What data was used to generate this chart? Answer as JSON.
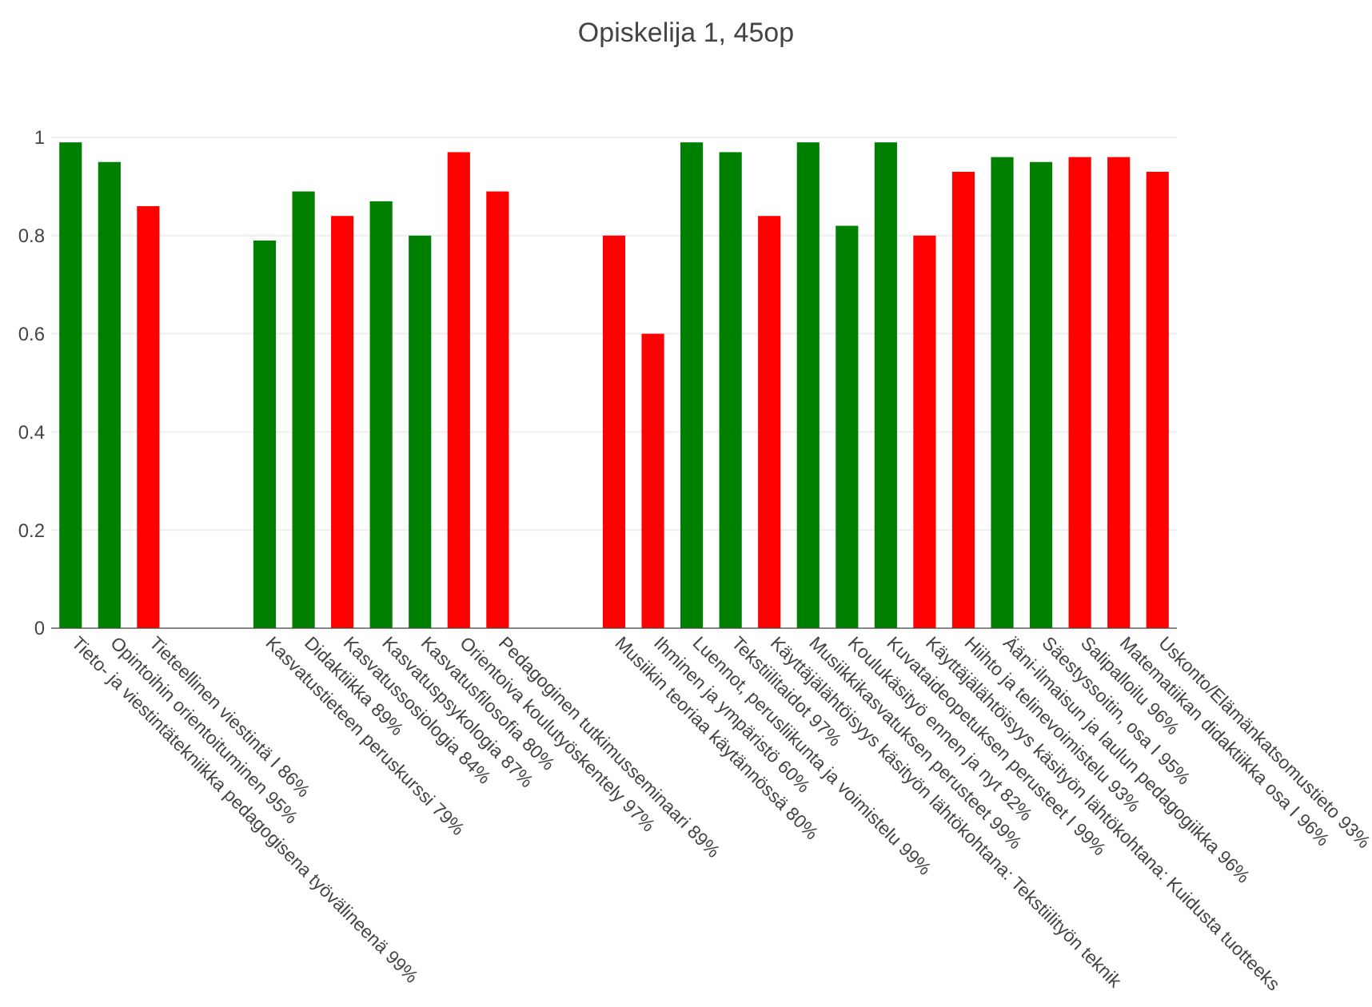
{
  "chart_data": {
    "type": "bar",
    "title": "Opiskelija 1, 45op",
    "categories": [
      "Tieto- ja viestintätekniikka pedagogisena työvälineenä 99%",
      "Opintoihin orientoituminen 95%",
      "Tieteellinen viestintä I 86%",
      null,
      null,
      "Kasvatustieteen peruskurssi 79%",
      "Didaktiikka 89%",
      "Kasvatussosiologia 84%",
      "Kasvatuspsykologia 87%",
      "Kasvatusfilosofia 80%",
      "Orientoiva koulutyöskentely 97%",
      "Pedagoginen tutkimusseminaari 89%",
      null,
      null,
      "Musiikin teoriaa käytännössä 80%",
      "Ihminen ja ympäristö 60%",
      "Luennot, perusliikunta ja voimistelu 99%",
      "Tekstiilitaidot 97%",
      "Käyttäjälähtöisyys käsityön lähtökohtana: Tekstiilityön teknik",
      "Musiikkikasvatuksen perusteet 99%",
      "Koulukäsityö ennen ja nyt 82%",
      "Kuvataideopetuksen perusteet I 99%",
      "Käyttäjälähtöisyys käsityön lähtökohtana: Kuidusta tuotteeks",
      "Hiihto ja telinevoimistelu 93%",
      "Ääni-ilmaisun ja laulun pedagogiikka 96%",
      "Säestyssoitin, osa I 95%",
      "Salipalloilu 96%",
      "Matematiikan didaktiikka osa I 96%",
      "Uskonto/Elämänkatsomustieto 93%"
    ],
    "values": [
      0.99,
      0.95,
      0.86,
      null,
      null,
      0.79,
      0.89,
      0.84,
      0.87,
      0.8,
      0.97,
      0.89,
      null,
      null,
      0.8,
      0.6,
      0.99,
      0.97,
      0.84,
      0.99,
      0.82,
      0.99,
      0.8,
      0.93,
      0.96,
      0.95,
      0.96,
      0.96,
      0.93
    ],
    "colors": [
      "#008000",
      "#008000",
      "#ff0000",
      null,
      null,
      "#008000",
      "#008000",
      "#ff0000",
      "#008000",
      "#008000",
      "#ff0000",
      "#ff0000",
      null,
      null,
      "#ff0000",
      "#ff0000",
      "#008000",
      "#008000",
      "#ff0000",
      "#008000",
      "#008000",
      "#008000",
      "#ff0000",
      "#ff0000",
      "#008000",
      "#008000",
      "#ff0000",
      "#ff0000",
      "#ff0000"
    ],
    "ylim": [
      0,
      1
    ],
    "yticks": [
      0,
      0.2,
      0.4,
      0.6,
      0.8,
      1
    ],
    "grid": "y"
  }
}
